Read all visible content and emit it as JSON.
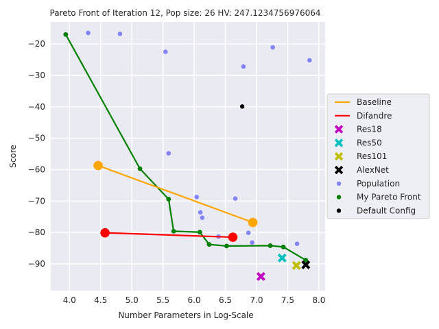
{
  "chart_data": {
    "type": "scatter",
    "title": "Pareto Front of Iteration 12, Pop size: 26 HV: 247.1234756976064",
    "xlabel": "Number Parameters in Log-Scale",
    "ylabel": "Score",
    "xlim": [
      3.7,
      8.1
    ],
    "ylim": [
      -98.5,
      -13
    ],
    "x_ticks": [
      4.0,
      4.5,
      5.0,
      5.5,
      6.0,
      6.5,
      7.0,
      7.5,
      8.0
    ],
    "x_tick_labels": [
      "4.0",
      "4.5",
      "5.0",
      "5.5",
      "6.0",
      "6.5",
      "7.0",
      "7.5",
      "8.0"
    ],
    "y_ticks": [
      -20,
      -30,
      -40,
      -50,
      -60,
      -70,
      -80,
      -90
    ],
    "y_tick_labels": [
      "−20",
      "−30",
      "−40",
      "−50",
      "−60",
      "−70",
      "−80",
      "−90"
    ],
    "grid": true,
    "legend_position": "center-right",
    "series": [
      {
        "name": "Baseline",
        "kind": "line",
        "color": "#ffa500",
        "x": [
          4.46,
          6.94
        ],
        "y": [
          -58.7,
          -76.8
        ]
      },
      {
        "name": "Difandre",
        "kind": "line",
        "color": "#ff0000",
        "x": [
          4.57,
          6.62
        ],
        "y": [
          -80.1,
          -81.5
        ]
      },
      {
        "name": "Res18",
        "kind": "x-marker",
        "color": "#bf00bf",
        "x": [
          7.07
        ],
        "y": [
          -94.0
        ]
      },
      {
        "name": "Res50",
        "kind": "x-marker",
        "color": "#00bfbf",
        "x": [
          7.41
        ],
        "y": [
          -88.1
        ]
      },
      {
        "name": "Res101",
        "kind": "x-marker",
        "color": "#bfbf00",
        "x": [
          7.64
        ],
        "y": [
          -90.5
        ]
      },
      {
        "name": "AlexNet",
        "kind": "x-marker",
        "color": "#000000",
        "x": [
          7.79
        ],
        "y": [
          -90.3
        ]
      },
      {
        "name": "Population",
        "kind": "scatter",
        "color": "#4d4dff",
        "x": [
          4.3,
          4.81,
          5.54,
          5.59,
          6.04,
          6.1,
          6.13,
          6.39,
          6.66,
          6.79,
          6.87,
          6.93,
          7.26,
          7.65,
          7.85
        ],
        "y": [
          -16.5,
          -16.8,
          -22.5,
          -54.8,
          -68.7,
          -73.6,
          -75.3,
          -81.3,
          -69.2,
          -27.2,
          -80.1,
          -83.2,
          -21.1,
          -83.6,
          -25.2
        ]
      },
      {
        "name": "My Pareto Front",
        "kind": "line-markers",
        "color": "#008000",
        "x": [
          3.94,
          5.13,
          5.59,
          5.67,
          6.09,
          6.24,
          6.52,
          7.22,
          7.43,
          7.79
        ],
        "y": [
          -17.0,
          -59.7,
          -69.4,
          -79.6,
          -79.9,
          -83.8,
          -84.3,
          -84.2,
          -84.6,
          -88.8
        ]
      },
      {
        "name": "Default Config",
        "kind": "scatter",
        "color": "#000000",
        "x": [
          6.77
        ],
        "y": [
          -39.9
        ]
      }
    ]
  }
}
